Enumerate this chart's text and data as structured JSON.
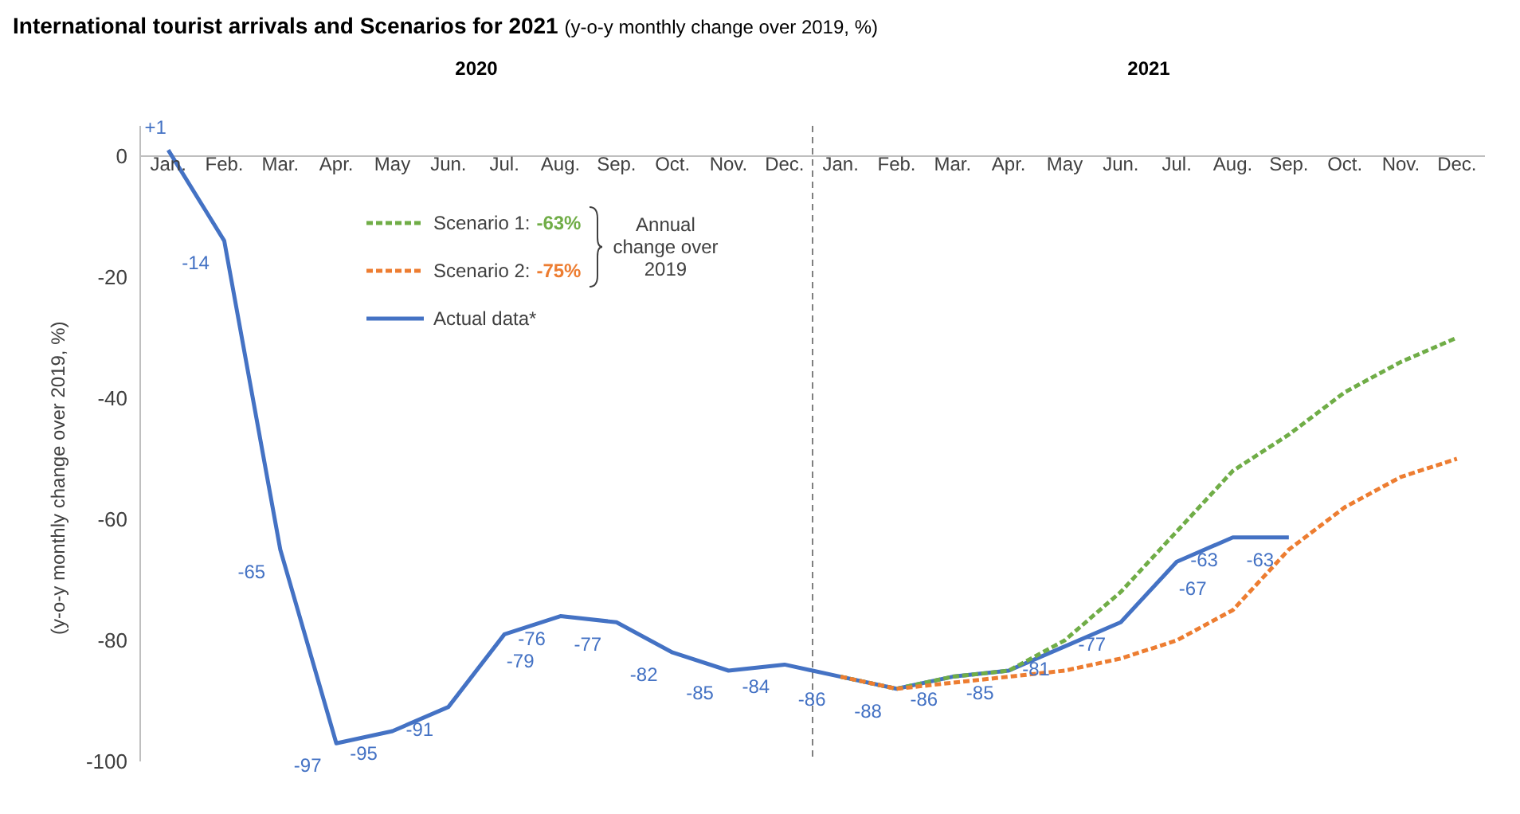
{
  "chart_data": {
    "type": "line",
    "title": "International tourist arrivals and Scenarios for 2021",
    "subtitle": "(y-o-y monthly change over 2019, %)",
    "ylabel": "(y-o-y monthly change over 2019, %)",
    "categories": [
      "Jan.",
      "Feb.",
      "Mar.",
      "Apr.",
      "May",
      "Jun.",
      "Jul.",
      "Aug.",
      "Sep.",
      "Oct.",
      "Nov.",
      "Dec.",
      "Jan.",
      "Feb.",
      "Mar.",
      "Apr.",
      "May",
      "Jun.",
      "Jul.",
      "Aug.",
      "Sep.",
      "Oct.",
      "Nov.",
      "Dec."
    ],
    "ylim": [
      -100,
      5
    ],
    "yticks": [
      0,
      -20,
      -40,
      -60,
      -80,
      -100
    ],
    "grid": false,
    "marker": "none",
    "legend": "top left",
    "annotations": [
      "2020",
      "2021",
      "-63%",
      "-75%",
      "Annual change over 2019"
    ],
    "series": [
      {
        "name": "Scenario 1:",
        "color": "#70ad47",
        "line_style": "dashed",
        "values": [
          null,
          null,
          null,
          null,
          null,
          null,
          null,
          null,
          null,
          null,
          null,
          null,
          -86,
          -88,
          -86,
          -85,
          -80,
          -72,
          -62,
          -52,
          -46,
          -39,
          -34,
          -30
        ]
      },
      {
        "name": "Scenario 2:",
        "color": "#ed7d31",
        "line_style": "dashed",
        "values": [
          null,
          null,
          null,
          null,
          null,
          null,
          null,
          null,
          null,
          null,
          null,
          null,
          -86,
          -88,
          -87,
          -86,
          -85,
          -83,
          -80,
          -75,
          -65,
          -58,
          -53,
          -50
        ]
      },
      {
        "name": "Actual data*",
        "color": "#4472c4",
        "line_style": "solid",
        "values": [
          1,
          -14,
          -65,
          -97,
          -95,
          -91,
          -79,
          -76,
          -77,
          -82,
          -85,
          -84,
          -86,
          -88,
          -86,
          -85,
          -81,
          -77,
          -67,
          -63,
          -63,
          null,
          null,
          null
        ],
        "value_labels": [
          "+1",
          "-14",
          "-65",
          "-97",
          "-95",
          "-91",
          "-79",
          "-76",
          "-77",
          "-82",
          "-85",
          "-84",
          "-86",
          "-88",
          "-86",
          "-85",
          "-81",
          "-77",
          "-67",
          "-63",
          "-63",
          null,
          null,
          null
        ]
      }
    ]
  }
}
